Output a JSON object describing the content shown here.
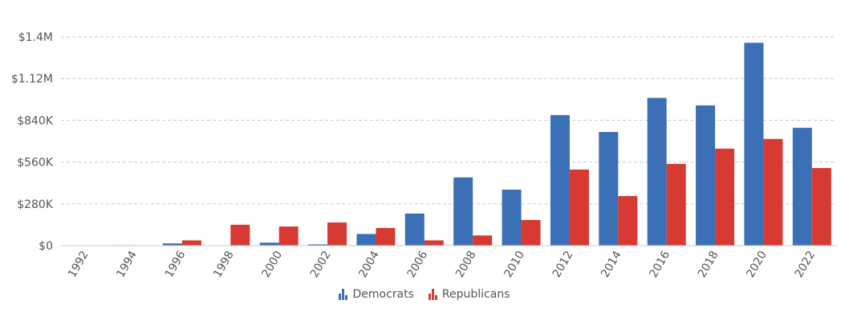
{
  "chart_data": {
    "type": "bar",
    "categories": [
      "1992",
      "1994",
      "1996",
      "1998",
      "2000",
      "2002",
      "2004",
      "2006",
      "2008",
      "2010",
      "2012",
      "2014",
      "2016",
      "2018",
      "2020",
      "2022"
    ],
    "series": [
      {
        "name": "Democrats",
        "color": "#3b6fb6",
        "values": [
          0,
          3000,
          15000,
          2000,
          20000,
          8000,
          78000,
          215000,
          457000,
          375000,
          875000,
          762000,
          990000,
          940000,
          1360000,
          790000
        ]
      },
      {
        "name": "Republicans",
        "color": "#d63a33",
        "values": [
          0,
          0,
          35000,
          140000,
          128000,
          155000,
          118000,
          35000,
          68000,
          172000,
          510000,
          332000,
          548000,
          650000,
          715000,
          520000
        ]
      }
    ],
    "yticks": [
      0,
      280000,
      560000,
      840000,
      1120000,
      1400000
    ],
    "ytick_labels": [
      "$0",
      "$280K",
      "$560K",
      "$840K",
      "$1.12M",
      "$1.4M"
    ],
    "ylim": [
      0,
      1400000
    ],
    "grid": true,
    "legend_position": "bottom-center",
    "title": "",
    "xlabel": "",
    "ylabel": ""
  }
}
